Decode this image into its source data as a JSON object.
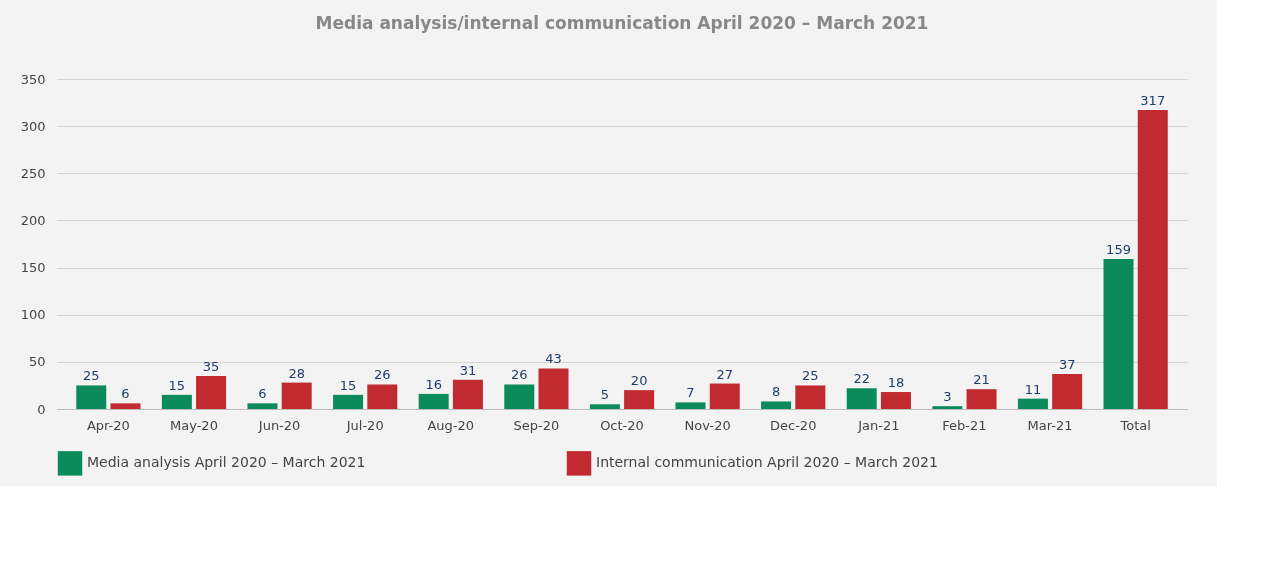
{
  "chart_data": {
    "type": "bar",
    "title": "Media analysis/internal communication April 2020 – March 2021",
    "categories": [
      "Apr-20",
      "May-20",
      "Jun-20",
      "Jul-20",
      "Aug-20",
      "Sep-20",
      "Oct-20",
      "Nov-20",
      "Dec-20",
      "Jan-21",
      "Feb-21",
      "Mar-21",
      "Total"
    ],
    "series": [
      {
        "name": "Media analysis April 2020 – March 2021",
        "color": "#0b8a5c",
        "values": [
          25,
          15,
          6,
          15,
          16,
          26,
          5,
          7,
          8,
          22,
          3,
          11,
          159
        ]
      },
      {
        "name": "Internal communication April 2020 – March 2021",
        "color": "#c02a30",
        "values": [
          6,
          35,
          28,
          26,
          31,
          43,
          20,
          27,
          25,
          18,
          21,
          37,
          317
        ]
      }
    ],
    "ylim": [
      0,
      350
    ],
    "yticks": [
      0,
      50,
      100,
      150,
      200,
      250,
      300,
      350
    ],
    "grid": "y",
    "legend": "bottom",
    "data_labels": true
  }
}
